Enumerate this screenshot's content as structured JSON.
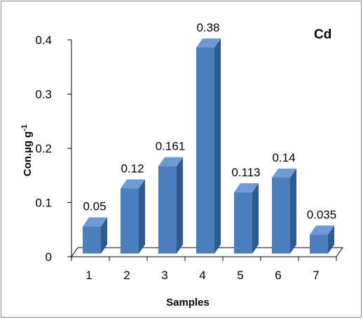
{
  "chart_data": {
    "type": "bar",
    "title": "Cd",
    "xlabel": "Samples",
    "ylabel_main": "Con.µg g",
    "ylabel_superscript": "-1",
    "categories": [
      "1",
      "2",
      "3",
      "4",
      "5",
      "6",
      "7"
    ],
    "values": [
      0.05,
      0.12,
      0.161,
      0.38,
      0.113,
      0.14,
      0.035
    ],
    "value_labels": [
      "0.05",
      "0.12",
      "0.161",
      "0.38",
      "0.113",
      "0.14",
      "0.035"
    ],
    "ylim": [
      0,
      0.4
    ],
    "yticks": [
      0,
      0.1,
      0.2,
      0.3,
      0.4
    ],
    "ytick_labels": [
      "0",
      "0.1",
      "0.2",
      "0.3",
      "0.4"
    ],
    "grid": false,
    "style": "3d-column",
    "colors": {
      "bar_front": "#4a7ebf",
      "bar_side": "#2f5a8e",
      "bar_top": "#6f9ad4"
    }
  }
}
